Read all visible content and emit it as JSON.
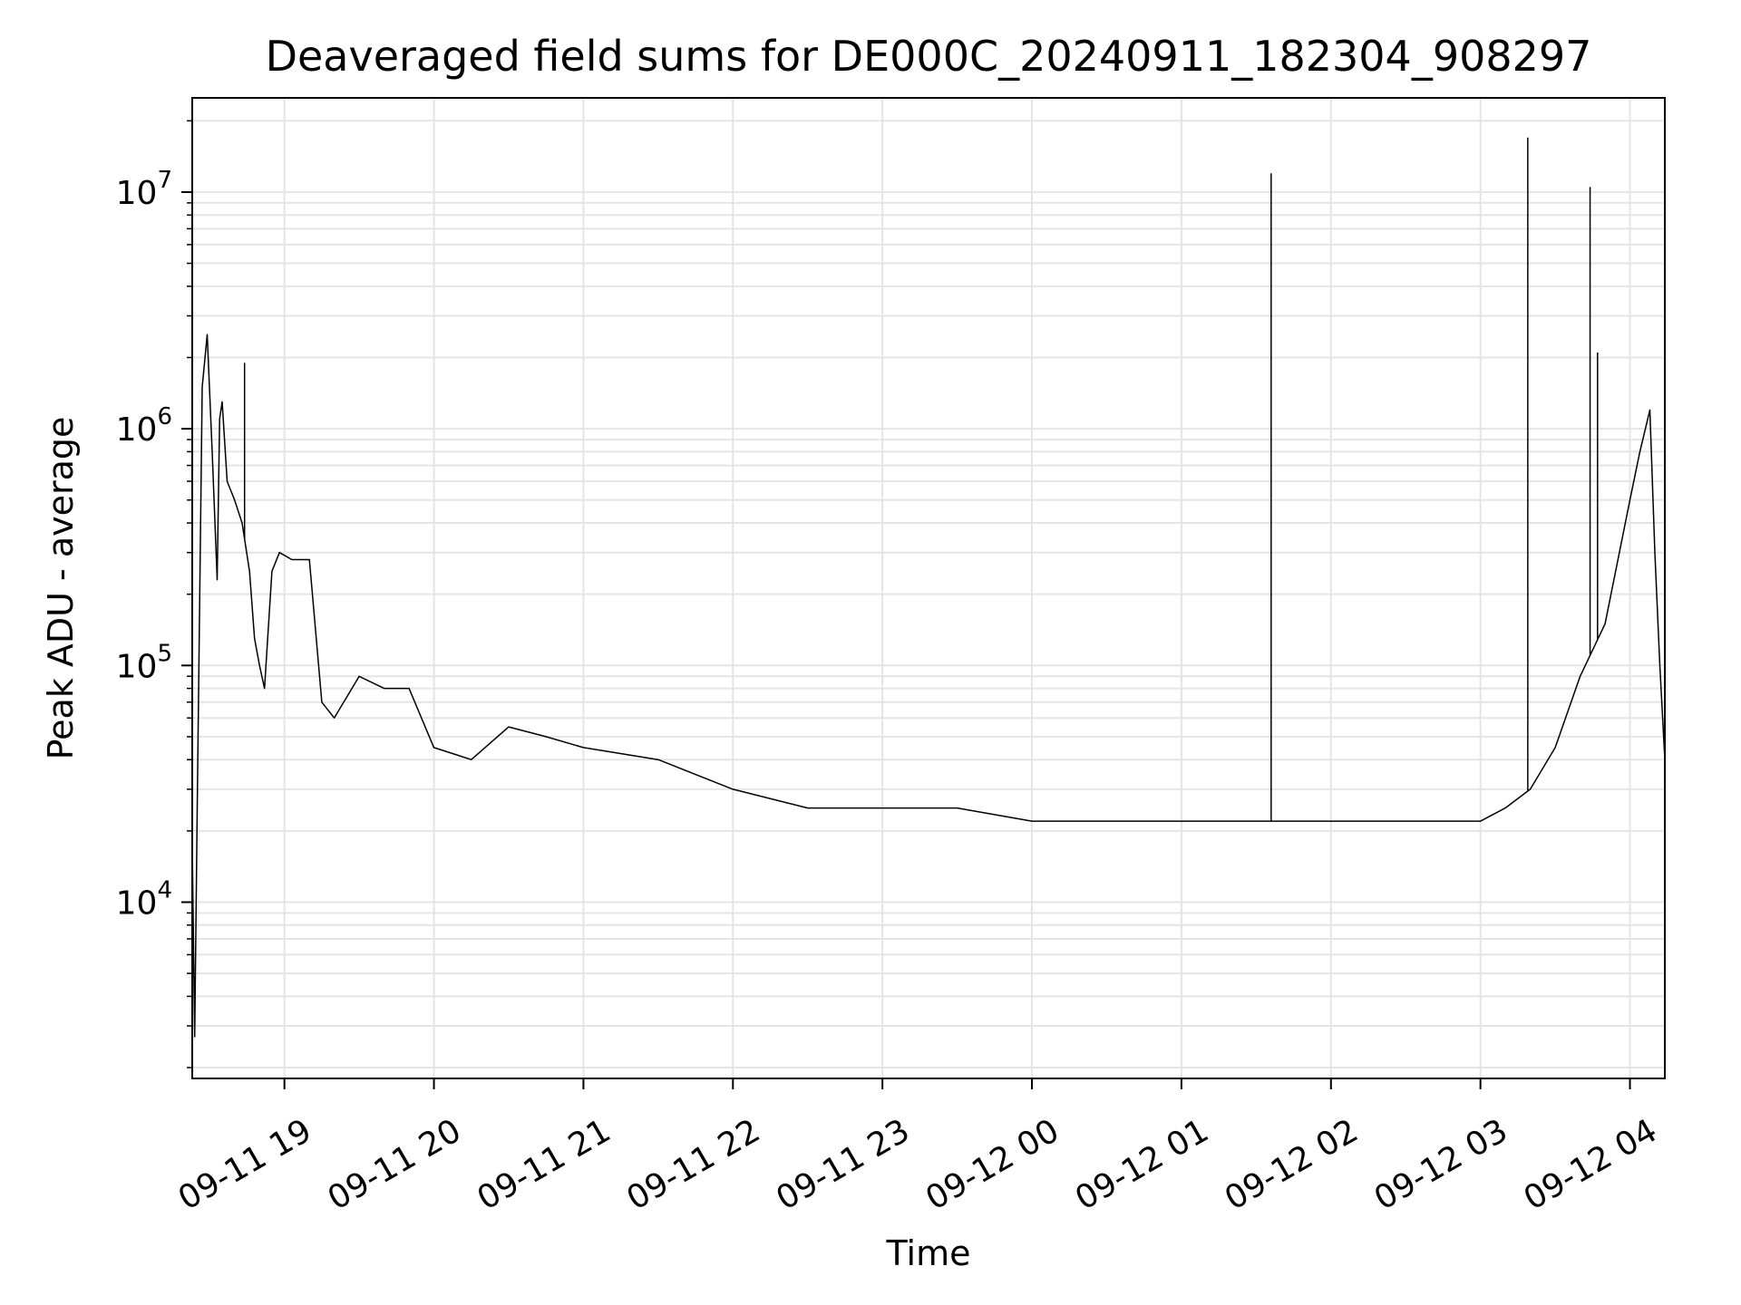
{
  "chart_data": {
    "type": "line",
    "title": "Deaveraged field sums for DE000C_20240911_182304_908297",
    "xlabel": "Time",
    "ylabel": "Peak ADU - average",
    "yscale": "log",
    "ylim": [
      1800,
      25000000
    ],
    "xlim": [
      "2024-09-11 18:23",
      "2024-09-12 04:14"
    ],
    "grid": true,
    "x_tick_labels": [
      "09-11 19",
      "09-11 20",
      "09-11 21",
      "09-11 22",
      "09-11 23",
      "09-12 00",
      "09-12 01",
      "09-12 02",
      "09-12 03",
      "09-12 04"
    ],
    "y_tick_labels": [
      {
        "base": "10",
        "exp": "4",
        "value": 10000
      },
      {
        "base": "10",
        "exp": "5",
        "value": 100000
      },
      {
        "base": "10",
        "exp": "6",
        "value": 1000000
      },
      {
        "base": "10",
        "exp": "7",
        "value": 10000000
      }
    ],
    "line_color": "#000000",
    "series": [
      {
        "x": [
          "2024-09-11 18:23",
          "2024-09-11 18:24",
          "2024-09-11 18:25",
          "2024-09-11 18:27",
          "2024-09-11 18:29",
          "2024-09-11 18:31",
          "2024-09-11 18:33",
          "2024-09-11 18:34",
          "2024-09-11 18:35",
          "2024-09-11 18:37",
          "2024-09-11 18:40",
          "2024-09-11 18:43",
          "2024-09-11 18:46",
          "2024-09-11 18:48",
          "2024-09-11 18:50",
          "2024-09-11 18:52",
          "2024-09-11 18:55",
          "2024-09-11 18:58",
          "2024-09-11 19:03",
          "2024-09-11 19:10",
          "2024-09-11 19:15",
          "2024-09-11 19:20",
          "2024-09-11 19:30",
          "2024-09-11 19:40",
          "2024-09-11 19:50",
          "2024-09-11 20:00",
          "2024-09-11 20:15",
          "2024-09-11 20:30",
          "2024-09-11 20:45",
          "2024-09-11 21:00",
          "2024-09-11 21:30",
          "2024-09-11 22:00",
          "2024-09-11 22:30",
          "2024-09-11 23:00",
          "2024-09-11 23:30",
          "2024-09-12 00:00",
          "2024-09-12 00:30",
          "2024-09-12 01:00",
          "2024-09-12 01:30",
          "2024-09-12 02:00",
          "2024-09-12 02:30",
          "2024-09-12 03:00",
          "2024-09-12 03:10",
          "2024-09-12 03:20",
          "2024-09-12 03:30",
          "2024-09-12 03:40",
          "2024-09-12 03:50",
          "2024-09-12 04:00",
          "2024-09-12 04:04",
          "2024-09-12 04:08",
          "2024-09-12 04:10",
          "2024-09-12 04:12",
          "2024-09-12 04:14"
        ],
        "y": [
          18000,
          2700,
          25000,
          1500000,
          2500000,
          800000,
          230000,
          1100000,
          1300000,
          600000,
          500000,
          400000,
          250000,
          130000,
          100000,
          80000,
          250000,
          300000,
          280000,
          280000,
          70000,
          60000,
          90000,
          80000,
          80000,
          45000,
          40000,
          55000,
          50000,
          45000,
          40000,
          30000,
          25000,
          25000,
          25000,
          22000,
          22000,
          22000,
          22000,
          22000,
          22000,
          22000,
          25000,
          30000,
          45000,
          90000,
          150000,
          500000,
          800000,
          1200000,
          300000,
          100000,
          40000
        ]
      }
    ],
    "spikes": [
      {
        "x": "2024-09-12 01:36",
        "y": 12000000
      },
      {
        "x": "2024-09-12 03:19",
        "y": 17000000
      },
      {
        "x": "2024-09-12 03:44",
        "y": 10500000
      },
      {
        "x": "2024-09-11 18:44",
        "y": 1900000
      },
      {
        "x": "2024-09-12 03:47",
        "y": 2100000
      }
    ]
  }
}
